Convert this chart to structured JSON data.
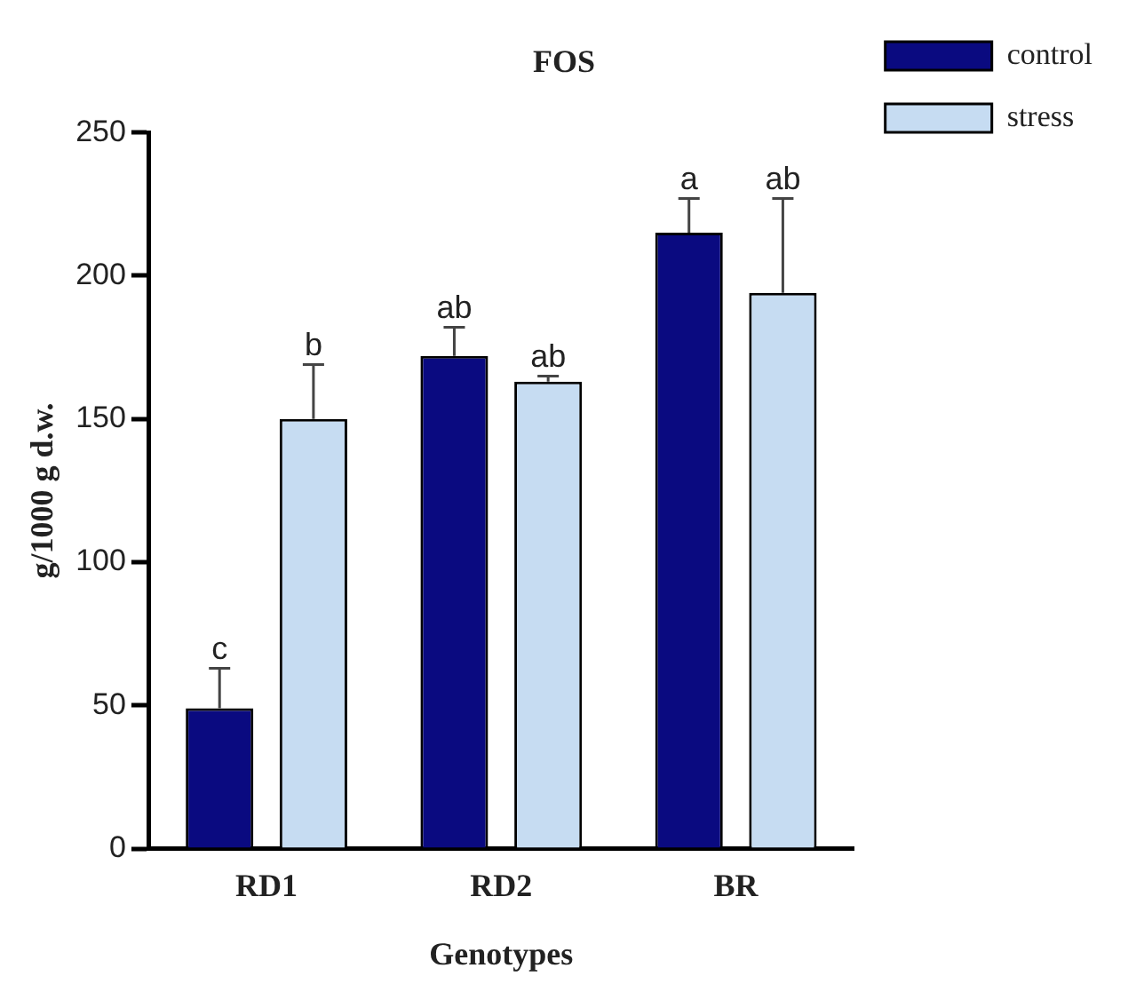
{
  "chart_data": {
    "type": "bar",
    "title": "FOS",
    "xlabel": "Genotypes",
    "ylabel": "g/1000 g d.w.",
    "categories": [
      "RD1",
      "RD2",
      "BR"
    ],
    "series": [
      {
        "name": "control",
        "color": "#0a0a80",
        "values": [
          49,
          172,
          215
        ],
        "errors": [
          [
            49,
            63
          ],
          [
            172,
            182
          ],
          [
            215,
            227
          ]
        ],
        "value_labels": [
          "c",
          "ab",
          "a"
        ]
      },
      {
        "name": "stress",
        "color": "#c6dcf2",
        "values": [
          150,
          163,
          194
        ],
        "errors": [
          [
            150,
            169
          ],
          [
            163,
            165
          ],
          [
            194,
            227
          ]
        ],
        "value_labels": [
          "b",
          "ab",
          "ab"
        ]
      }
    ],
    "ylim": [
      0,
      250
    ],
    "yticks": [
      0,
      50,
      100,
      150,
      200,
      250
    ],
    "grid": false,
    "legend": "top right"
  }
}
